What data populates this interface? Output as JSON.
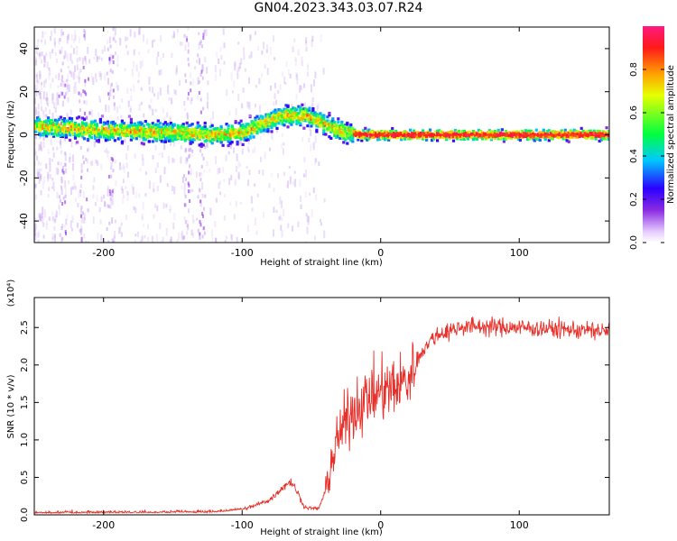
{
  "title": "GN04.2023.343.03.07.R24",
  "chart_data": [
    {
      "type": "heatmap",
      "xlabel": "Height of straight line (km)",
      "ylabel": "Frequency (Hz)",
      "xlim": [
        -250,
        165
      ],
      "ylim": [
        -50,
        50
      ],
      "xticks": [
        -200,
        -100,
        0,
        100
      ],
      "yticks": [
        -40,
        -20,
        0,
        20,
        40
      ],
      "ridge": [
        [
          -250,
          4
        ],
        [
          -200,
          2
        ],
        [
          -150,
          1
        ],
        [
          -120,
          0
        ],
        [
          -100,
          1
        ],
        [
          -90,
          4
        ],
        [
          -80,
          7
        ],
        [
          -70,
          9
        ],
        [
          -55,
          9
        ],
        [
          -45,
          6
        ],
        [
          -35,
          3
        ],
        [
          -25,
          1
        ],
        [
          -15,
          0
        ],
        [
          165,
          0
        ]
      ],
      "colorbar": {
        "label": "Normalized spectral amplitude",
        "range": [
          0,
          1
        ],
        "ticks": [
          0.0,
          0.2,
          0.4,
          0.6,
          0.8
        ]
      }
    },
    {
      "type": "line",
      "xlabel": "Height of straight line (km)",
      "ylabel": "SNR (10 * v/v)",
      "multiplier": "(x10⁴)",
      "xlim": [
        -250,
        165
      ],
      "ylim": [
        0,
        2.9
      ],
      "xticks": [
        -200,
        -100,
        0,
        100
      ],
      "yticks": [
        0.0,
        0.5,
        1.0,
        1.5,
        2.0,
        2.5
      ],
      "color": "#e8302a",
      "trend": [
        [
          -250,
          0.02
        ],
        [
          -120,
          0.03
        ],
        [
          -100,
          0.07
        ],
        [
          -90,
          0.13
        ],
        [
          -80,
          0.2
        ],
        [
          -70,
          0.38
        ],
        [
          -65,
          0.45
        ],
        [
          -60,
          0.3
        ],
        [
          -55,
          0.1
        ],
        [
          -45,
          0.08
        ],
        [
          -40,
          0.3
        ],
        [
          -35,
          0.75
        ],
        [
          -30,
          1.05
        ],
        [
          -25,
          1.25
        ],
        [
          -20,
          1.4
        ],
        [
          -10,
          1.55
        ],
        [
          0,
          1.65
        ],
        [
          10,
          1.7
        ],
        [
          20,
          1.8
        ],
        [
          25,
          2.0
        ],
        [
          30,
          2.2
        ],
        [
          40,
          2.4
        ],
        [
          60,
          2.52
        ],
        [
          100,
          2.5
        ],
        [
          165,
          2.45
        ]
      ]
    }
  ]
}
